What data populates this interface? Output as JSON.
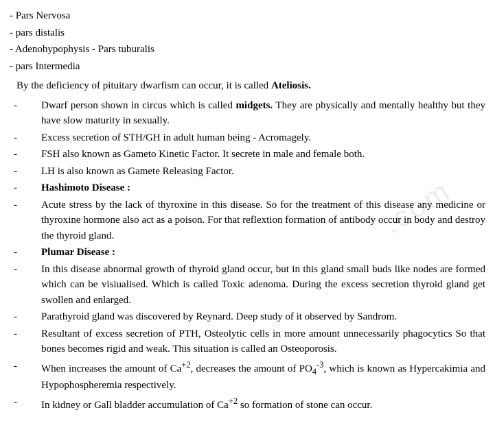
{
  "top_lines": [
    "-  Pars Nervosa",
    "- pars distalis",
    "- Adenohypophysis - Pars tuburalis",
    "- pars Intermedia"
  ],
  "intro_prefix": "By the deficiency of pituitary dwarfism can occur, it is called ",
  "intro_bold": "Ateliosis.",
  "bullets": [
    {
      "pre": "Dwarf person shown in circus which is called ",
      "bold": "midgets.",
      "post": " They are physically and mentally healthy but they have slow maturity in sexually."
    },
    {
      "pre": "Excess secretion of STH/GH in adult human being - Acromagely.",
      "bold": "",
      "post": ""
    },
    {
      "pre": "FSH also known as Gameto Kinetic Factor. It secrete in male and female both.",
      "bold": "",
      "post": ""
    },
    {
      "pre": "LH is also known as Gamete Releasing Factor.",
      "bold": "",
      "post": ""
    },
    {
      "pre": "",
      "bold": "Hashimoto Disease  :",
      "post": ""
    },
    {
      "pre": "Acute stress by the lack of thyroxine in this disease. So for the treatment of this disease any medicine or thyroxine hormone also act as a poison. For that reflextion formation of antibody occur in body and destroy the thyroid gland.",
      "bold": "",
      "post": ""
    },
    {
      "pre": "",
      "bold": "Plumar Disease  :",
      "post": ""
    },
    {
      "pre": "In this disease abnormal growth of thyroid gland occur, but in this gland small buds like nodes are formed which can be visiualised. Which is called Toxic adenoma. During the excess secretion thyroid gland get swollen and enlarged.",
      "bold": "",
      "post": ""
    },
    {
      "pre": "Parathyroid gland was discovered by Reynard. Deep study of it observed by Sandrom.",
      "bold": "",
      "post": ""
    },
    {
      "pre": "Resultant of excess secretion of PTH, Osteolytic cells in more amount unnecessarily phagocytics So that bones becomes rigid and weak. This situation is called an Osteoporosis.",
      "bold": "",
      "post": ""
    },
    {
      "pre": "When increases the amount of Ca",
      "sup1": "+2",
      "mid": ", decreases the amount of PO",
      "sub1": "4",
      "sup2": "-3",
      "post": ", which is known as Hypercakimia and Hypophospheremia respectively."
    },
    {
      "pre": "In kidney or Gall bladder accumulation of Ca",
      "sup1": "+2",
      "post": " so formation of stone can occur."
    }
  ],
  "dash": "-",
  "watermark": ".com"
}
